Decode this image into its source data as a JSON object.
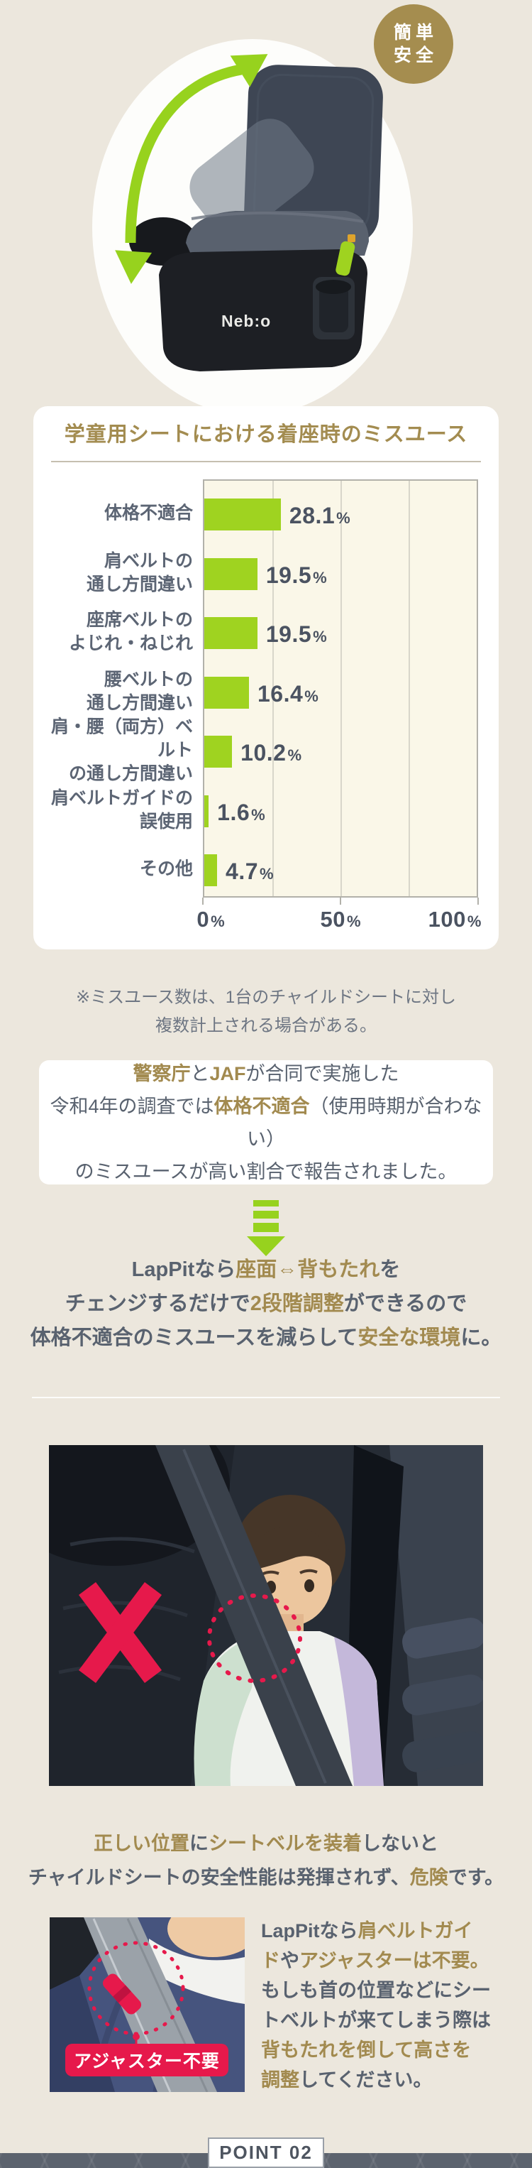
{
  "page": {
    "bg_color": "#ece7dd",
    "accent_green": "#97d21e",
    "accent_gold": "#a28a4f",
    "accent_red": "#e6194b",
    "text_dark": "#59626f"
  },
  "hero": {
    "badge": {
      "line1": "簡単",
      "line2": "安全",
      "bg_color": "#a58d4f",
      "text_color": "#ffffff"
    },
    "product_logo": "Neb:o"
  },
  "chart_data": {
    "type": "bar",
    "orientation": "horizontal",
    "title": "学童用シートにおける着座時のミスユース",
    "categories": [
      "体格不適合",
      "肩ベルトの\n通し方間違い",
      "座席ベルトの\nよじれ・ねじれ",
      "腰ベルトの\n通し方間違い",
      "肩・腰（両方）ベルト\nの通し方間違い",
      "肩ベルトガイドの\n誤使用",
      "その他"
    ],
    "values": [
      28.1,
      19.5,
      19.5,
      16.4,
      10.2,
      1.6,
      4.7
    ],
    "unit": "%",
    "xlim": [
      0,
      100
    ],
    "x_tick_values": [
      0,
      50,
      100
    ],
    "x_tick_labels": [
      "0%",
      "50%",
      "100%"
    ],
    "gridline_values": [
      25,
      50,
      75
    ],
    "bar_color": "#9fd320",
    "plot_bg": "#faf7e8",
    "grid": true,
    "legend": "none"
  },
  "note": {
    "line1": "※ミスユース数は、1台のチャイルドシートに対し",
    "line2": "複数計上される場合がある。"
  },
  "info_box": {
    "lines": [
      [
        {
          "t": "警察庁",
          "c": "gold"
        },
        {
          "t": "と",
          "c": "dark"
        },
        {
          "t": "JAF",
          "c": "gold"
        },
        {
          "t": "が合同で実施した",
          "c": "dark"
        }
      ],
      [
        {
          "t": "令和4年の調査では",
          "c": "dark"
        },
        {
          "t": "体格不適合",
          "c": "gold"
        },
        {
          "t": "（使用時期が合わない）",
          "c": "dark"
        }
      ],
      [
        {
          "t": "のミスユースが高い割合で報告されました。",
          "c": "dark"
        }
      ]
    ]
  },
  "lead": {
    "lines": [
      [
        {
          "t": "LapPitなら",
          "c": "dark"
        },
        {
          "t": "座面⇔背もたれ",
          "c": "gold"
        },
        {
          "t": "を",
          "c": "dark"
        }
      ],
      [
        {
          "t": "チェンジするだけで",
          "c": "dark"
        },
        {
          "t": "2段階調整",
          "c": "gold"
        },
        {
          "t": "ができるので",
          "c": "dark"
        }
      ],
      [
        {
          "t": "体格不適合のミスユースを減らして",
          "c": "dark"
        },
        {
          "t": "安全な環境",
          "c": "gold"
        },
        {
          "t": "に。",
          "c": "dark"
        }
      ]
    ]
  },
  "caption": {
    "lines": [
      [
        {
          "t": "正しい位置",
          "c": "gold"
        },
        {
          "t": "に",
          "c": "dark"
        },
        {
          "t": "シートベルを装着",
          "c": "gold"
        },
        {
          "t": "しないと",
          "c": "dark"
        }
      ],
      [
        {
          "t": "チャイルドシートの安全性能は発揮されず、",
          "c": "dark"
        },
        {
          "t": "危険",
          "c": "gold"
        },
        {
          "t": "です。",
          "c": "dark"
        }
      ]
    ]
  },
  "detail": {
    "adjuster_label": "アジャスター不要",
    "lines": [
      [
        {
          "t": "LapPitなら",
          "c": "dark"
        },
        {
          "t": "肩ベルトガイ",
          "c": "gold"
        }
      ],
      [
        {
          "t": "ド",
          "c": "gold"
        },
        {
          "t": "や",
          "c": "dark"
        },
        {
          "t": "アジャスターは不要。",
          "c": "gold"
        }
      ],
      [
        {
          "t": "もしも首の位置などにシー",
          "c": "dark"
        }
      ],
      [
        {
          "t": "トベルトが来てしまう際は",
          "c": "dark"
        }
      ],
      [
        {
          "t": "背もたれを倒して高さを",
          "c": "gold"
        }
      ],
      [
        {
          "t": "調整",
          "c": "gold"
        },
        {
          "t": "してください。",
          "c": "dark"
        }
      ]
    ]
  },
  "footer": {
    "point_label": "POINT 02",
    "band_color": "#5c636e"
  }
}
